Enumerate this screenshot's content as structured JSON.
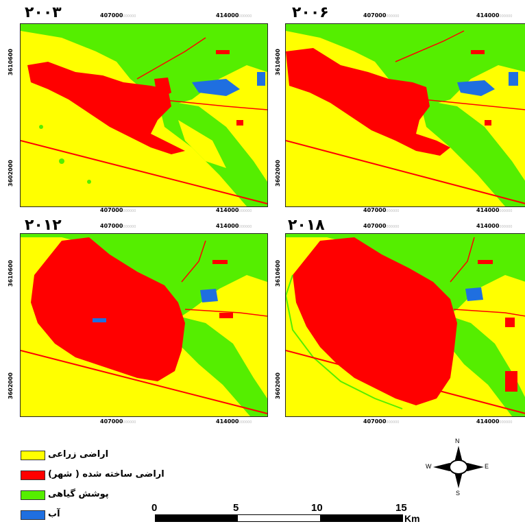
{
  "panels": [
    {
      "year": "۲۰۰۳",
      "x_ticks": [
        "407000",
        "414000"
      ],
      "y_ticks": [
        "3610600",
        "3602000"
      ]
    },
    {
      "year": "۲۰۰۶",
      "x_ticks": [
        "407000",
        "414000"
      ],
      "y_ticks": [
        "3610600",
        "3602000"
      ]
    },
    {
      "year": "۲۰۱۲",
      "x_ticks": [
        "407000",
        "414000"
      ],
      "y_ticks": [
        "3610600",
        "3602000"
      ]
    },
    {
      "year": "۲۰۱۸",
      "x_ticks": [
        "407000",
        "414000"
      ],
      "y_ticks": [
        "3610600",
        "3602000"
      ]
    }
  ],
  "tick_suffix": "000000",
  "legend": [
    {
      "label": "اراضی زراعی",
      "color": "#ffff00"
    },
    {
      "label": "اراضی ساخته شده ( شهر)",
      "color": "#ff0000"
    },
    {
      "label": "پوشش گیاهی",
      "color": "#55ee00"
    },
    {
      "label": "آب",
      "color": "#1f6fe0"
    }
  ],
  "scale_bar": {
    "labels": [
      "0",
      "5",
      "10",
      "15"
    ],
    "unit": "Km"
  },
  "compass": {
    "n": "N",
    "s": "S",
    "e": "E",
    "w": "W"
  }
}
